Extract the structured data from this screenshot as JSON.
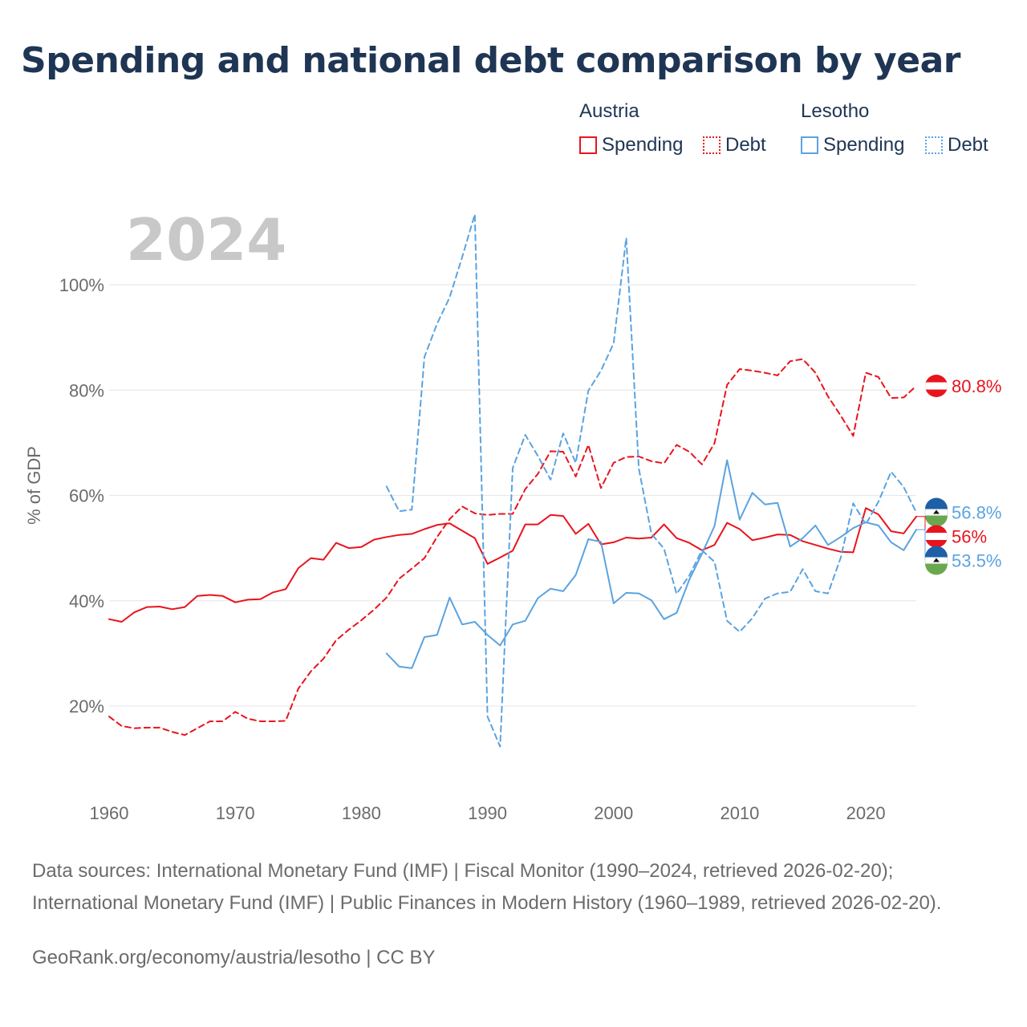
{
  "title": "Spending and national debt comparison by year",
  "legend": {
    "austria_label": "Austria",
    "lesotho_label": "Lesotho",
    "spending_label": "Spending",
    "debt_label": "Debt"
  },
  "colors": {
    "austria": "#e8141e",
    "lesotho": "#5ba3e0",
    "grid": "#e6e6e6",
    "year_watermark": "#c8c8c8"
  },
  "chart_data": {
    "type": "line",
    "title": "Spending and national debt comparison by year",
    "year_label": "2024",
    "ylabel": "% of GDP",
    "xlabel": "",
    "xlim": [
      1960,
      2024
    ],
    "ylim": [
      7,
      116
    ],
    "x_ticks": [
      1960,
      1970,
      1980,
      1990,
      2000,
      2010,
      2020
    ],
    "y_ticks": [
      20,
      40,
      60,
      80,
      100
    ],
    "y_tick_labels": [
      "20%",
      "40%",
      "60%",
      "80%",
      "100%"
    ],
    "series": [
      {
        "name": "Austria Spending",
        "country": "Austria",
        "metric": "Spending",
        "style": "solid",
        "color": "#e8141e",
        "start_year": 1960,
        "values": [
          36.5,
          36,
          37.8,
          38.8,
          38.9,
          38.4,
          38.8,
          40.9,
          41.1,
          40.9,
          39.7,
          40.2,
          40.3,
          41.6,
          42.2,
          46.2,
          48.1,
          47.8,
          51,
          50,
          50.2,
          51.6,
          52.1,
          52.5,
          52.7,
          53.6,
          54.4,
          54.7,
          53.3,
          51.9,
          47,
          48.2,
          49.5,
          54.5,
          54.5,
          56.3,
          56.1,
          52.7,
          54.6,
          50.7,
          51.1,
          52,
          51.8,
          52,
          54.5,
          51.9,
          51,
          49.6,
          50.6,
          54.8,
          53.6,
          51.5,
          52,
          52.6,
          52.5,
          51.3,
          50.6,
          49.9,
          49.3,
          49.2,
          57.6,
          56.4,
          53.2,
          52.8,
          56
        ],
        "end_label": "56%"
      },
      {
        "name": "Austria Debt",
        "country": "Austria",
        "metric": "Debt",
        "style": "dashed",
        "color": "#e8141e",
        "start_year": 1960,
        "values": [
          18,
          16.2,
          15.8,
          15.9,
          15.9,
          15.1,
          14.5,
          15.8,
          17.1,
          17.1,
          18.9,
          17.6,
          17.1,
          17.1,
          17.2,
          23.3,
          26.6,
          29,
          32.5,
          34.5,
          36.3,
          38.3,
          40.6,
          44.2,
          46.1,
          48.1,
          52.1,
          55.5,
          57.9,
          56.6,
          56.3,
          56.5,
          56.5,
          61.2,
          64.1,
          68.4,
          68.3,
          63.6,
          69.6,
          61.4,
          66.2,
          67.3,
          67.4,
          66.5,
          66.1,
          69.6,
          68.3,
          65.9,
          69.9,
          81,
          84,
          83.7,
          83.3,
          82.8,
          85.5,
          85.9,
          83.3,
          78.8,
          75.2,
          71.3,
          83.3,
          82.5,
          78.5,
          78.6,
          80.8
        ],
        "end_label": "80.8%"
      },
      {
        "name": "Lesotho Spending",
        "country": "Lesotho",
        "metric": "Spending",
        "style": "solid",
        "color": "#5ba3e0",
        "start_year": 1982,
        "values": [
          30,
          27.5,
          27.2,
          33.1,
          33.5,
          40.6,
          35.5,
          36,
          33.5,
          31.5,
          35.5,
          36.2,
          40.5,
          42.3,
          41.8,
          44.9,
          51.7,
          51.2,
          39.5,
          41.5,
          41.4,
          40.1,
          36.5,
          37.7,
          44,
          48.9,
          54.2,
          66.7,
          55.4,
          60.5,
          58.3,
          58.6,
          50.3,
          51.9,
          54.3,
          50.6,
          52.1,
          53.8,
          54.9,
          54.3,
          51.1,
          49.6,
          53.5
        ],
        "end_label": "53.5%"
      },
      {
        "name": "Lesotho Debt",
        "country": "Lesotho",
        "metric": "Debt",
        "style": "dashed",
        "color": "#5ba3e0",
        "start_year": 1982,
        "values": [
          61.7,
          57,
          57.3,
          86.3,
          92.6,
          97.6,
          105.3,
          113.4,
          18,
          12.3,
          65.2,
          71.5,
          67.5,
          63,
          71.8,
          66.2,
          79.9,
          83.7,
          88.9,
          108.9,
          65.1,
          52.7,
          49.9,
          41.3,
          44.8,
          49.6,
          47.4,
          36.2,
          34.1,
          36.7,
          40.4,
          41.4,
          41.7,
          46,
          41.8,
          41.4,
          48.1,
          58.5,
          54.5,
          58.8,
          64.5,
          61.6,
          56.8
        ],
        "end_label": "56.8%"
      }
    ]
  },
  "source_text": "Data sources: International Monetary Fund (IMF) | Fiscal Monitor (1990–2024, retrieved 2026-02-20); International Monetary Fund (IMF) | Public Finances in Modern History (1960–1989, retrieved 2026-02-20).",
  "credit_text": "GeoRank.org/economy/austria/lesotho | CC BY"
}
